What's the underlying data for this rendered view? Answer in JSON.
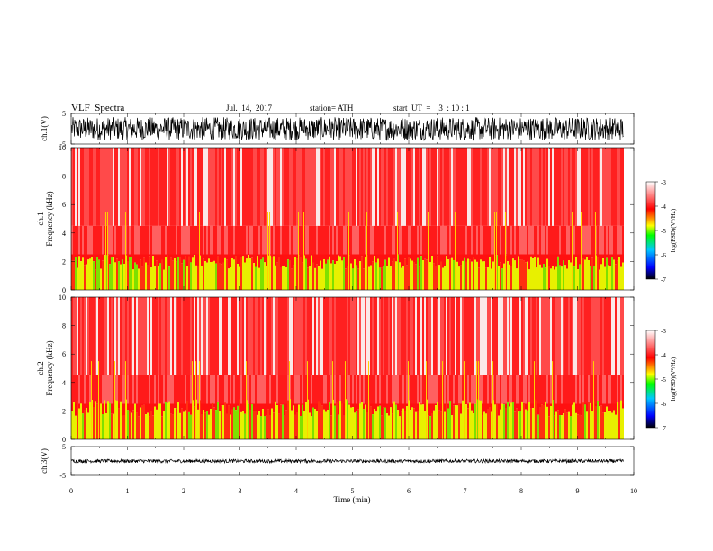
{
  "header": {
    "title": "VLF  Spectra",
    "date": "Jul.  14,  2017",
    "station": "station= ATH",
    "start_ut": "start  UT  =    3  : 10 : 1"
  },
  "chart_data": [
    {
      "type": "line",
      "name": "waveform-ch1",
      "ylabel": "ch.1(V)",
      "yticks": [
        5,
        -5
      ],
      "ylim": [
        -5,
        5
      ],
      "xlim": [
        0,
        10
      ],
      "data_extent_min": 9.82,
      "amplitude_envelope": [
        -3.8,
        3.8
      ]
    },
    {
      "type": "heatmap",
      "name": "spectrogram-ch1",
      "ylabel_line1": "ch.1",
      "ylabel_line2": "Frequency  (kHz)",
      "yticks": [
        0,
        2,
        4,
        6,
        8,
        10
      ],
      "ylim": [
        0,
        10
      ],
      "xlim": [
        0,
        10
      ],
      "colorbar": {
        "label": "log(PSD)(V²/Hz)",
        "ticks": [
          -3,
          -4,
          -5,
          -6,
          -7
        ],
        "range": [
          -7,
          -3
        ],
        "colors": [
          "#000000",
          "#0000ff",
          "#00c8ff",
          "#00ff00",
          "#ffff00",
          "#ff0000",
          "#ffffff"
        ]
      }
    },
    {
      "type": "heatmap",
      "name": "spectrogram-ch2",
      "ylabel_line1": "ch.2",
      "ylabel_line2": "Frequency  (kHz)",
      "yticks": [
        0,
        2,
        4,
        6,
        8,
        10
      ],
      "ylim": [
        0,
        10
      ],
      "xlim": [
        0,
        10
      ],
      "colorbar": {
        "label": "log(PSD)(V²/Hz)",
        "ticks": [
          -3,
          -4,
          -5,
          -6,
          -7
        ],
        "range": [
          -7,
          -3
        ],
        "colors": [
          "#000000",
          "#0000ff",
          "#00c8ff",
          "#00ff00",
          "#ffff00",
          "#ff0000",
          "#ffffff"
        ]
      }
    },
    {
      "type": "line",
      "name": "waveform-ch3",
      "ylabel": "ch.3(V)",
      "yticks": [
        5,
        -5
      ],
      "ylim": [
        -5,
        5
      ],
      "xlim": [
        0,
        10
      ],
      "data_extent_min": 9.82,
      "amplitude_envelope": [
        -0.6,
        0.6
      ],
      "xlabel": "Time  (min)",
      "xticks": [
        0,
        1,
        2,
        3,
        4,
        5,
        6,
        7,
        8,
        9,
        10
      ]
    }
  ]
}
